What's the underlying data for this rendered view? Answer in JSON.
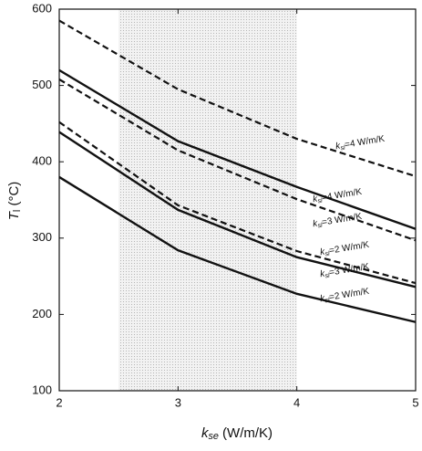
{
  "chart_data": {
    "type": "line",
    "x_label": "kse (W/m/K)",
    "y_label": "Tl (°C)",
    "x": [
      2,
      3,
      4,
      5
    ],
    "xlim": [
      2,
      5
    ],
    "xticks": [
      2,
      3,
      4,
      5
    ],
    "ylim": [
      100,
      600
    ],
    "yticks": [
      100,
      200,
      300,
      400,
      500,
      600
    ],
    "shaded_region": [
      2.5,
      4
    ],
    "series": [
      {
        "name": "ksl=4 W/m/K",
        "color": "#111111",
        "dashed": true,
        "values": [
          585,
          495,
          430,
          381
        ]
      },
      {
        "name": "ksl=4 W/m/K",
        "color": "#111111",
        "dashed": false,
        "values": [
          520,
          427,
          367,
          312
        ]
      },
      {
        "name": "ksl=3 W/m/K",
        "color": "#111111",
        "dashed": true,
        "values": [
          508,
          415,
          351,
          297
        ]
      },
      {
        "name": "ksl=2 W/m/K",
        "color": "#111111",
        "dashed": true,
        "values": [
          452,
          343,
          283,
          241
        ]
      },
      {
        "name": "ksl=3 W/m/K",
        "color": "#111111",
        "dashed": false,
        "values": [
          439,
          337,
          275,
          236
        ]
      },
      {
        "name": "ksl=2 W/m/K",
        "color": "#111111",
        "dashed": false,
        "values": [
          380,
          284,
          227,
          190
        ]
      }
    ]
  }
}
